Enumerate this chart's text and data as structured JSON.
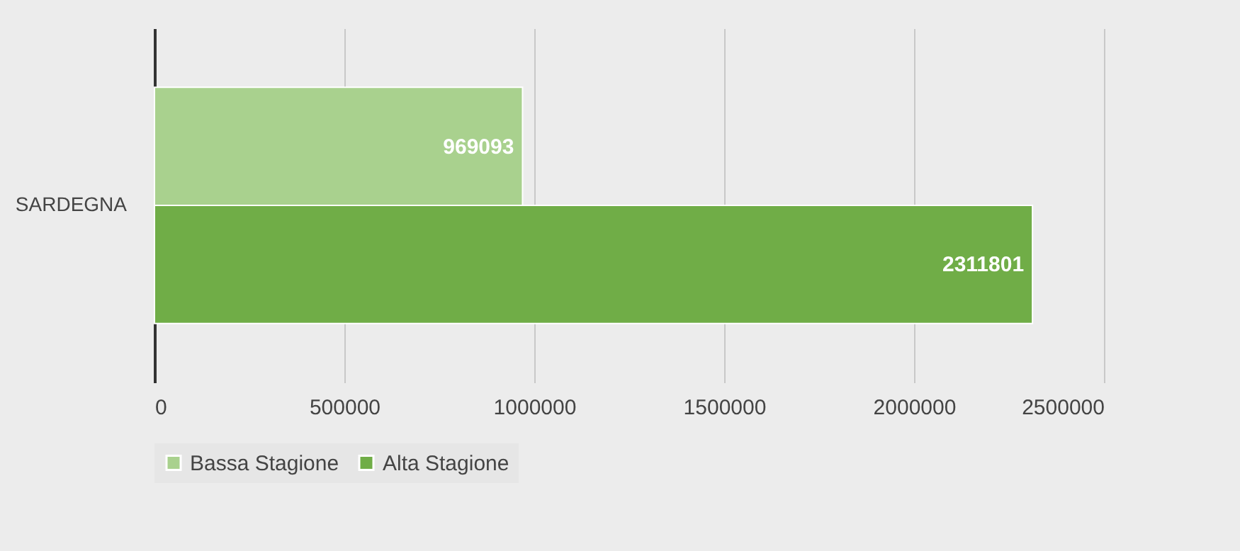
{
  "chart_data": {
    "type": "bar",
    "orientation": "horizontal",
    "categories": [
      "SARDEGNA"
    ],
    "series": [
      {
        "name": "Bassa Stagione",
        "color": "#a9d18e",
        "values": [
          969093
        ]
      },
      {
        "name": "Alta Stagione",
        "color": "#70ad47",
        "values": [
          2311801
        ]
      }
    ],
    "xlim": [
      0,
      2500000
    ],
    "xticks": [
      0,
      500000,
      1000000,
      1500000,
      2000000,
      2500000
    ],
    "grid": "x",
    "legend": "bottom",
    "data_labels": true
  }
}
